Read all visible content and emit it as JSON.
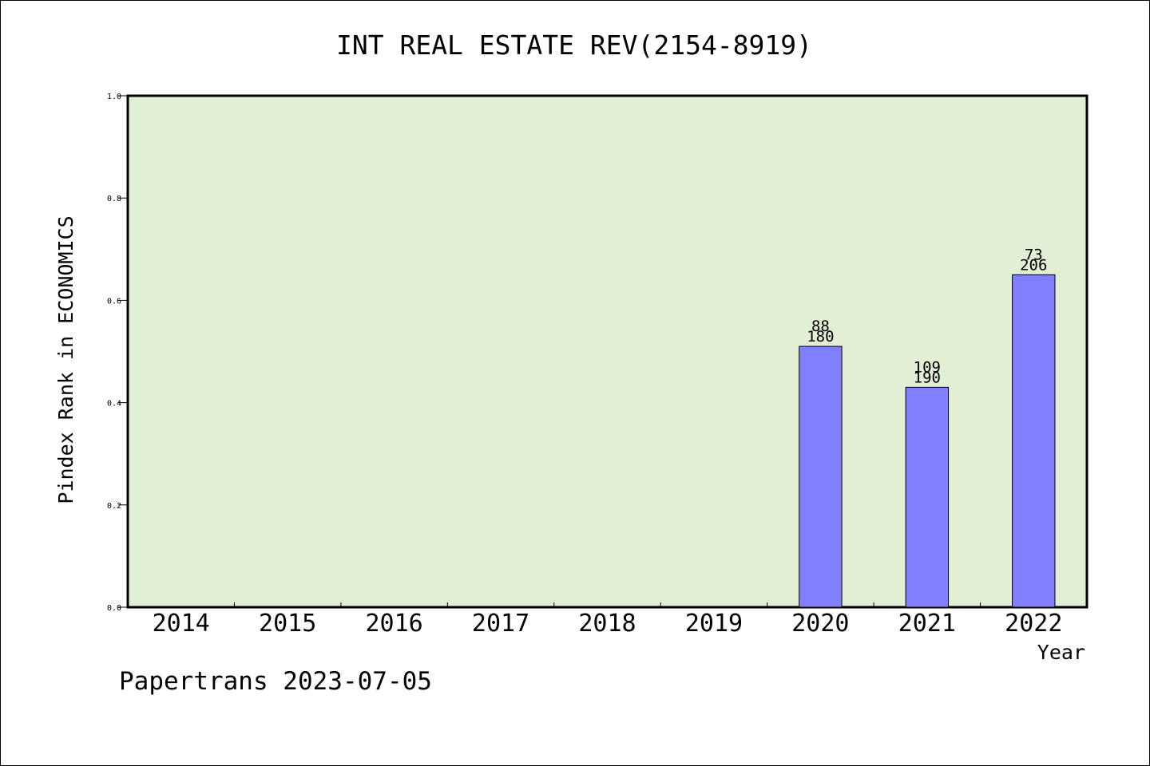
{
  "chart_data": {
    "type": "bar",
    "title": "INT REAL ESTATE REV(2154-8919)",
    "xlabel": "Year",
    "ylabel": "Pindex Rank in ECONOMICS",
    "footer": "Papertrans 2023-07-05",
    "categories": [
      "2014",
      "2015",
      "2016",
      "2017",
      "2018",
      "2019",
      "2020",
      "2021",
      "2022"
    ],
    "values": [
      null,
      null,
      null,
      null,
      null,
      null,
      0.51,
      0.43,
      0.65
    ],
    "bar_labels_top": [
      "",
      "",
      "",
      "",
      "",
      "",
      "88",
      "109",
      "73"
    ],
    "bar_labels_bottom": [
      "",
      "",
      "",
      "",
      "",
      "",
      "180",
      "190",
      "206"
    ],
    "ylim": [
      0,
      1.0
    ],
    "yticks": [
      "0.0",
      "0.2",
      "0.4",
      "0.6",
      "0.8",
      "1.0"
    ],
    "grid": false,
    "colors": {
      "plot_background": "#e2efd5",
      "bar_fill": "#8080ff",
      "bar_stroke": "#000000"
    }
  }
}
